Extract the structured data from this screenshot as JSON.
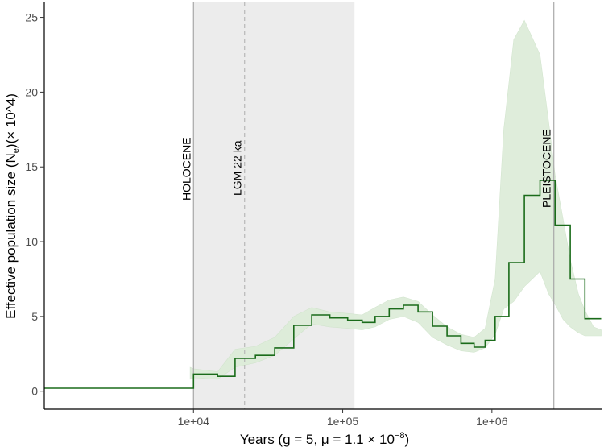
{
  "chart_data": {
    "type": "line",
    "x_scale": "log10",
    "xlim": [
      1000,
      5500000
    ],
    "ylim": [
      -1.2,
      26
    ],
    "grid": false,
    "xlabel": "Years (g = 5, μ = 1.1 × 10",
    "xlabel_exponent": "−8",
    "xlabel_close": ")",
    "ylabel": "Effective population size (N",
    "ylabel_subscript": "e",
    "ylabel_suffix": ")(× 10^4)",
    "x_ticks": [
      {
        "value": 10000,
        "label": "1e+04"
      },
      {
        "value": 100000,
        "label": "1e+05"
      },
      {
        "value": 1000000,
        "label": "1e+06"
      }
    ],
    "y_ticks": [
      {
        "value": 0,
        "label": "0"
      },
      {
        "value": 5,
        "label": "5"
      },
      {
        "value": 10,
        "label": "10"
      },
      {
        "value": 15,
        "label": "15"
      },
      {
        "value": 20,
        "label": "20"
      },
      {
        "value": 25,
        "label": "25"
      }
    ],
    "shaded_region": {
      "x_from": 10000,
      "x_to": 120000,
      "color": "#ececec"
    },
    "annotations": [
      {
        "x": 10000,
        "label": "HOLOCENE",
        "line": "solid"
      },
      {
        "x": 22000,
        "label": "LGM 22 ka",
        "line": "dashed"
      },
      {
        "x": 2600000,
        "label": "PLEISTOCENE",
        "line": "solid"
      }
    ],
    "series": [
      {
        "color": "#1a6b1a",
        "steps": [
          [
            1000,
            0.2
          ],
          [
            10000,
            1.15
          ],
          [
            14500,
            1.0
          ],
          [
            19000,
            2.2
          ],
          [
            26000,
            2.4
          ],
          [
            35000,
            2.9
          ],
          [
            47000,
            4.4
          ],
          [
            62000,
            5.1
          ],
          [
            82000,
            4.9
          ],
          [
            108000,
            4.75
          ],
          [
            135000,
            4.6
          ],
          [
            165000,
            5.0
          ],
          [
            205000,
            5.5
          ],
          [
            255000,
            5.75
          ],
          [
            320000,
            5.3
          ],
          [
            400000,
            4.35
          ],
          [
            500000,
            3.7
          ],
          [
            620000,
            3.2
          ],
          [
            760000,
            2.95
          ],
          [
            900000,
            3.4
          ],
          [
            1050000,
            5.0
          ],
          [
            1300000,
            8.6
          ],
          [
            1650000,
            13.1
          ],
          [
            2100000,
            14.1
          ],
          [
            2650000,
            11.1
          ],
          [
            3350000,
            7.5
          ],
          [
            4200000,
            4.85
          ],
          [
            5400000,
            4.85
          ]
        ]
      }
    ],
    "bootstrap_band": {
      "color": "#dcecd8",
      "points": [
        [
          9500,
          0.8,
          1.6
        ],
        [
          10000,
          0.9,
          1.5
        ],
        [
          14500,
          0.8,
          1.3
        ],
        [
          19000,
          1.6,
          2.8
        ],
        [
          26000,
          1.9,
          3.0
        ],
        [
          35000,
          2.4,
          3.6
        ],
        [
          47000,
          3.5,
          5.0
        ],
        [
          62000,
          4.5,
          5.6
        ],
        [
          82000,
          4.3,
          5.3
        ],
        [
          108000,
          4.2,
          5.2
        ],
        [
          135000,
          4.1,
          5.1
        ],
        [
          165000,
          4.3,
          5.6
        ],
        [
          205000,
          4.8,
          6.1
        ],
        [
          255000,
          5.0,
          6.3
        ],
        [
          320000,
          4.6,
          6.0
        ],
        [
          400000,
          3.6,
          5.1
        ],
        [
          500000,
          3.1,
          4.3
        ],
        [
          620000,
          2.7,
          3.8
        ],
        [
          760000,
          2.6,
          3.6
        ],
        [
          900000,
          2.9,
          4.2
        ],
        [
          1050000,
          3.8,
          7.5
        ],
        [
          1200000,
          5.5,
          17.5
        ],
        [
          1400000,
          6.0,
          23.5
        ],
        [
          1650000,
          7.0,
          24.8
        ],
        [
          2100000,
          8.0,
          22.5
        ],
        [
          2400000,
          6.5,
          18.0
        ],
        [
          2650000,
          5.8,
          14.5
        ],
        [
          3000000,
          4.8,
          11.5
        ],
        [
          3350000,
          4.3,
          8.8
        ],
        [
          3800000,
          3.9,
          6.5
        ],
        [
          4200000,
          3.7,
          5.4
        ],
        [
          4800000,
          3.7,
          4.3
        ],
        [
          5400000,
          3.7,
          4.1
        ]
      ]
    }
  }
}
